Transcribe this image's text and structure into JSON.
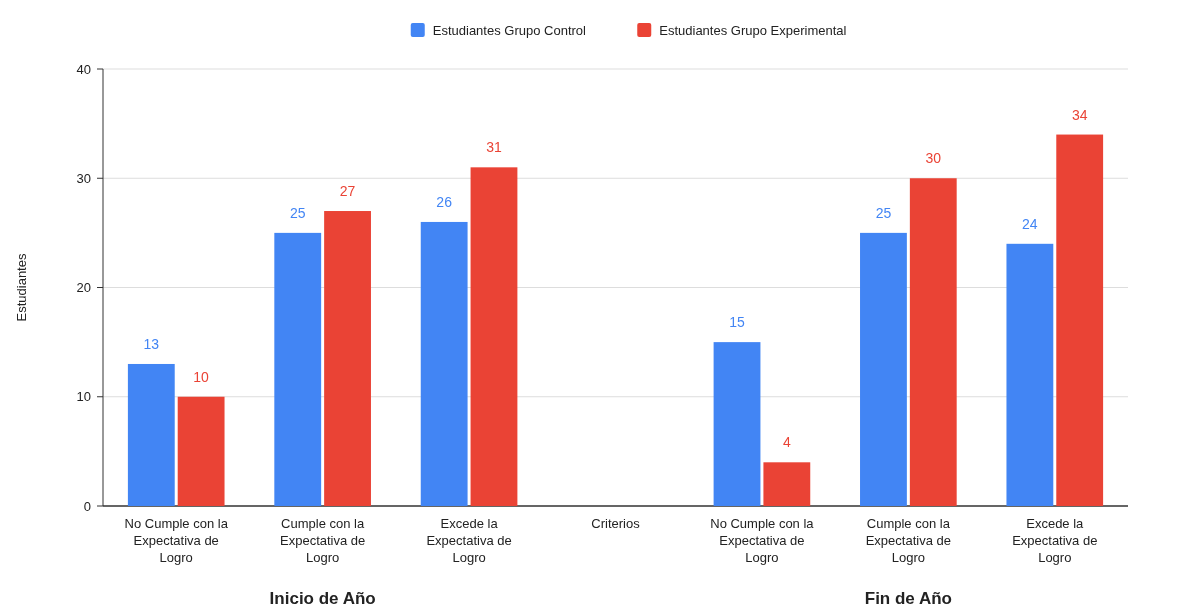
{
  "chart_data": {
    "type": "bar",
    "categories": [
      "No Cumple con la Expectativa de Logro",
      "Cumple con la Expectativa de Logro",
      "Excede la Expectativa de Logro",
      "Criterios",
      "No Cumple con la Expectativa de Logro",
      "Cumple con la Expectativa de Logro",
      "Excede la Expectativa de Logro"
    ],
    "series": [
      {
        "name": "Estudiantes Grupo Control",
        "color": "#4285f4",
        "values": [
          13,
          25,
          26,
          null,
          15,
          25,
          24
        ]
      },
      {
        "name": "Estudiantes Grupo Experimental",
        "color": "#ea4335",
        "values": [
          10,
          27,
          31,
          null,
          4,
          30,
          34
        ]
      }
    ],
    "ylabel": "Estudiantes",
    "ylim": [
      0,
      40
    ],
    "yticks": [
      0,
      10,
      20,
      30,
      40
    ],
    "grid": "y",
    "legend": "top",
    "data_labels": true,
    "annotations": [
      "Inicio de Año",
      "Fin de Año"
    ]
  }
}
